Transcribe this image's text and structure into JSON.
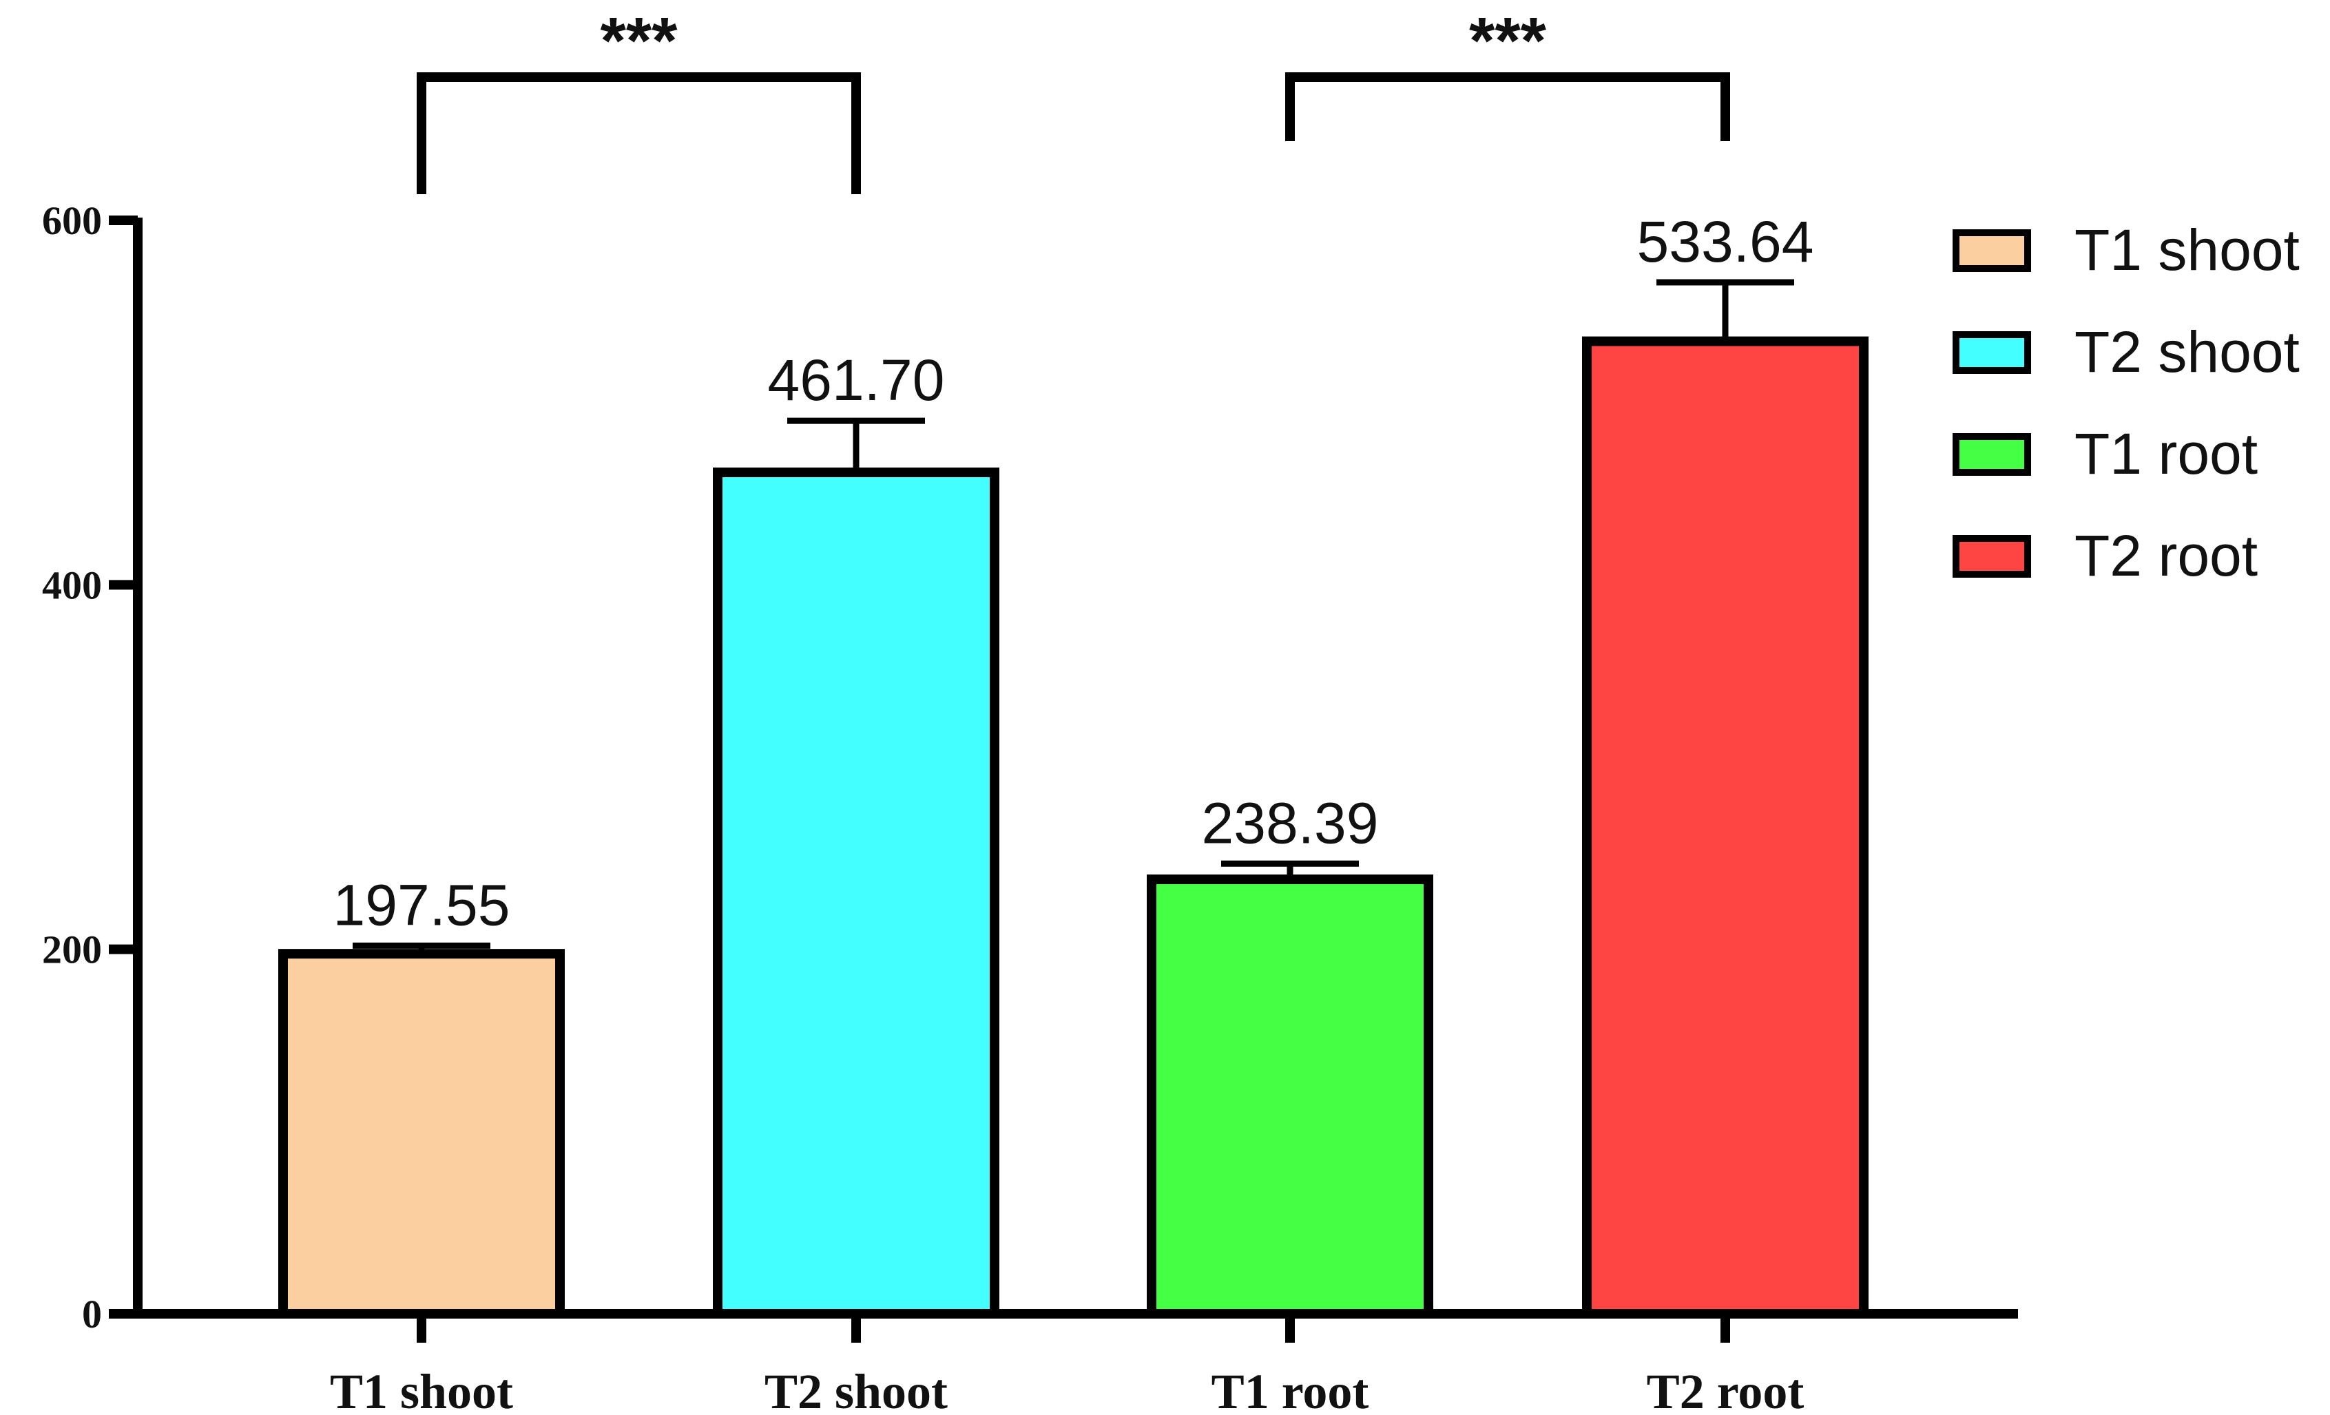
{
  "chart_data": {
    "type": "bar",
    "categories": [
      "T1 shoot",
      "T2 shoot",
      "T1 root",
      "T2 root"
    ],
    "values": [
      197.55,
      461.7,
      238.39,
      533.64
    ],
    "value_labels": [
      "197.55",
      "461.70",
      "238.39",
      "533.64"
    ],
    "error_bar_tops": [
      202,
      490,
      247,
      566
    ],
    "colors": [
      "#FBCFA0",
      "#44FFFF",
      "#44FF44",
      "#FF4444"
    ],
    "ylim": [
      0,
      600
    ],
    "yticks": [
      0,
      200,
      400,
      600
    ],
    "ytick_labels": [
      "0",
      "200",
      "400",
      "600"
    ],
    "legend": {
      "position": "top-right",
      "entries": [
        "T1 shoot",
        "T2 shoot",
        "T1 root",
        "T2 root"
      ]
    },
    "significance": [
      {
        "from": 0,
        "to": 1,
        "label": "***"
      },
      {
        "from": 2,
        "to": 3,
        "label": "***"
      }
    ],
    "title": "",
    "xlabel": "",
    "ylabel": "",
    "grid": false
  }
}
